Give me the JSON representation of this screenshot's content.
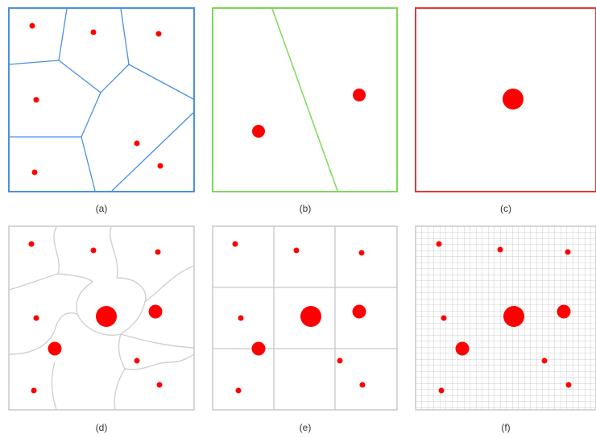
{
  "panels": [
    {
      "label": "(a)",
      "border_color": "#4a90e2"
    },
    {
      "label": "(b)",
      "border_color": "#7ed957"
    },
    {
      "label": "(c)",
      "border_color": "#e53935"
    },
    {
      "label": "(d)",
      "border_color": "#c8c8c8"
    },
    {
      "label": "(e)",
      "border_color": "#c8c8c8"
    },
    {
      "label": "(f)",
      "border_color": "#c8c8c8"
    }
  ],
  "colors": {
    "point": "#ff0000",
    "voronoi_edge": "#4a90e2",
    "bisector": "#7ed957",
    "curved_edge": "#d0d0d0",
    "grid_line": "#c8c8c8",
    "fine_grid": "#c0c0c0"
  }
}
